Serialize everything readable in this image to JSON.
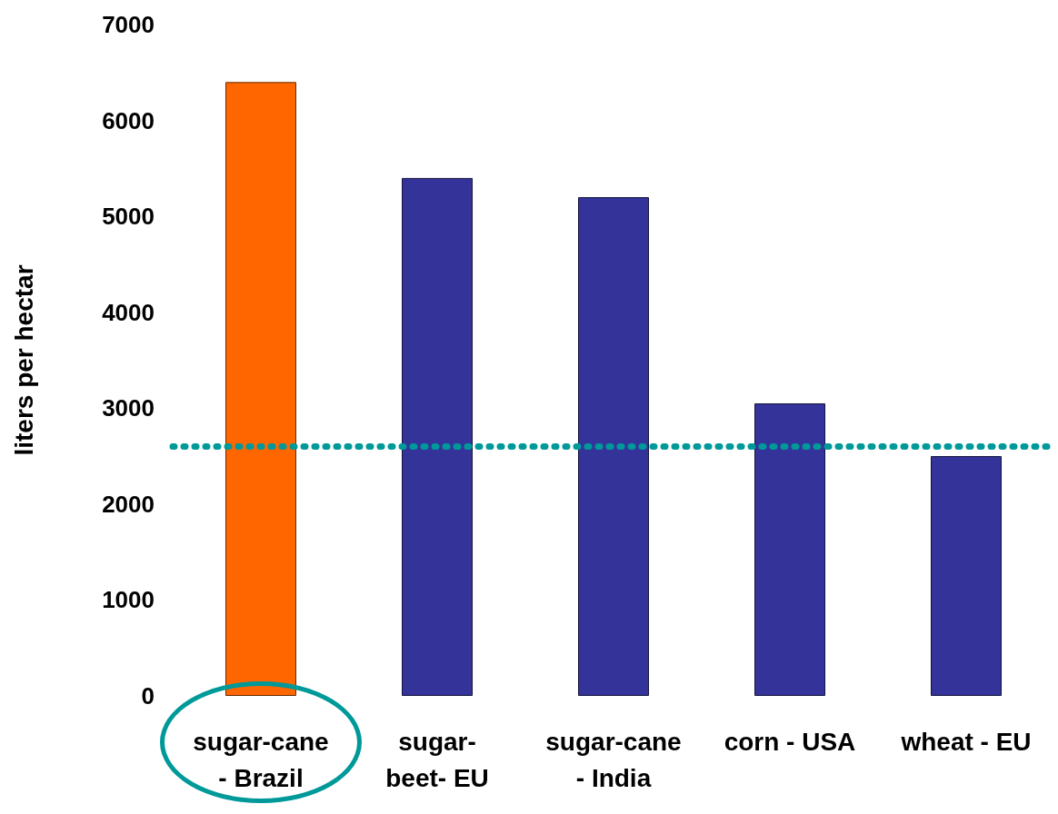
{
  "chart_data": {
    "type": "bar",
    "ylabel": "liters per hectar",
    "categories": [
      "sugar-cane\n- Brazil",
      "sugar-\nbeet- EU",
      "sugar-cane\n- India",
      "corn - USA",
      "wheat - EU"
    ],
    "values": [
      6400,
      5400,
      5200,
      3050,
      2500
    ],
    "colors": [
      "#ff6600",
      "#333399",
      "#333399",
      "#333399",
      "#333399"
    ],
    "ylim": [
      0,
      7000
    ],
    "yticks": [
      0,
      1000,
      2000,
      3000,
      4000,
      5000,
      6000,
      7000
    ],
    "grid": false,
    "ref_lines": [
      {
        "axis": "y",
        "value": 2600,
        "color": "#009999",
        "line_style": "dotted"
      }
    ]
  }
}
